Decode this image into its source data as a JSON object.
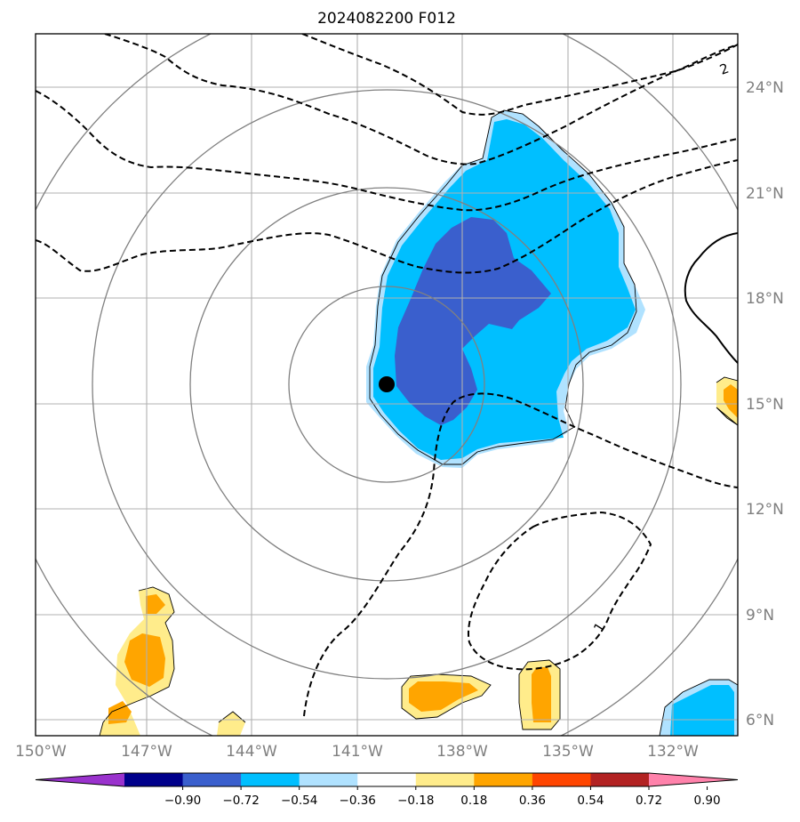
{
  "title": "2024082200 F012",
  "lon_labels": [
    "150°W",
    "147°W",
    "144°W",
    "141°W",
    "138°W",
    "135°W",
    "132°W"
  ],
  "lat_labels": [
    "24°N",
    "21°N",
    "18°N",
    "15°N",
    "12°N",
    "9°N",
    "6°N"
  ],
  "colorbar": {
    "ticks": [
      "−0.90",
      "−0.72",
      "−0.54",
      "−0.36",
      "−0.18",
      "0.18",
      "0.36",
      "0.54",
      "0.72",
      "0.90"
    ],
    "colors": [
      "#9a32cd",
      "#00008b",
      "#3a5fcd",
      "#00bfff",
      "#b0e2ff",
      "#ffffff",
      "#ffec8b",
      "#ffa500",
      "#ff4500",
      "#b22222",
      "#ff82ab"
    ]
  },
  "contour_labels": {
    "top_right": "2",
    "bottom_right": "1"
  },
  "storm_center": {
    "lon": -140.8,
    "lat": 15.5
  },
  "fill_colors": {
    "light_blue": "#b0e2ff",
    "blue": "#00bfff",
    "dark_blue": "#3a5fcd",
    "light_yellow": "#ffec8b",
    "orange": "#ffa500"
  }
}
